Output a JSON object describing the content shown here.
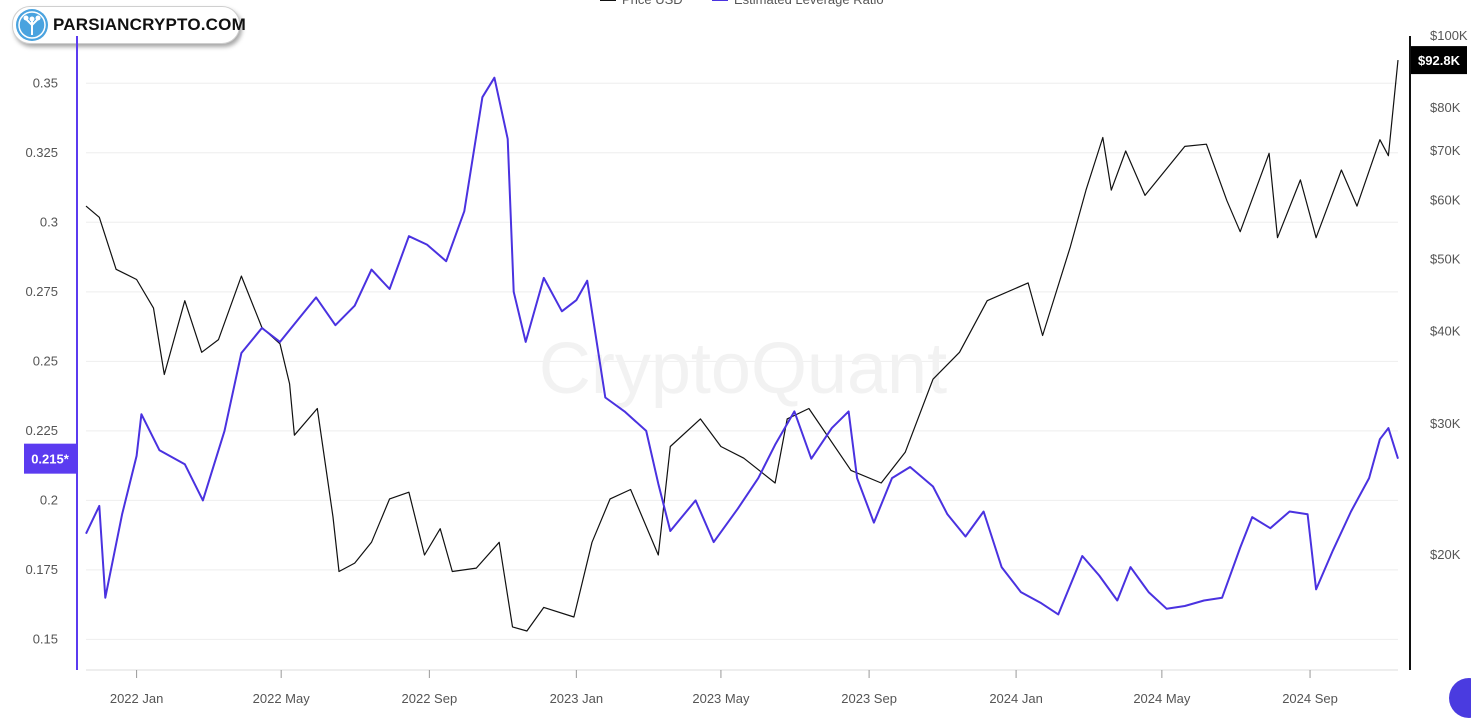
{
  "brand": {
    "logo_text": "PARSIANCRYPTO.COM",
    "logo_icon": "network-tree-icon",
    "watermark": "CryptoQuant"
  },
  "colors": {
    "price": "#111111",
    "leverage": "#4a32e0",
    "grid": "#eeeeee",
    "left_axis": "#5b3bf0",
    "right_axis": "#111111"
  },
  "chart_data": {
    "type": "line",
    "legend": [
      "Price USD",
      "Estimated Leverage Ratio"
    ],
    "legend_position": "top",
    "x_range": [
      "2021-11-20",
      "2024-11-13"
    ],
    "x_ticks": [
      {
        "label": "2022 Jan",
        "date": "2022-01-01"
      },
      {
        "label": "2022 May",
        "date": "2022-05-01"
      },
      {
        "label": "2022 Sep",
        "date": "2022-09-01"
      },
      {
        "label": "2023 Jan",
        "date": "2023-01-01"
      },
      {
        "label": "2023 May",
        "date": "2023-05-01"
      },
      {
        "label": "2023 Sep",
        "date": "2023-09-01"
      },
      {
        "label": "2024 Jan",
        "date": "2024-01-01"
      },
      {
        "label": "2024 May",
        "date": "2024-05-01"
      },
      {
        "label": "2024 Sep",
        "date": "2024-09-01"
      }
    ],
    "left_axis": {
      "ticks": [
        "0.15",
        "0.175",
        "0.2",
        "0.225",
        "0.25",
        "0.275",
        "0.3",
        "0.325",
        "0.35"
      ],
      "range": [
        0.139,
        0.367
      ],
      "current_label": "0.215*",
      "current_value": 0.215
    },
    "right_axis": {
      "scale": "log",
      "ticks": [
        {
          "label": "$20K",
          "value": 20000
        },
        {
          "label": "$30K",
          "value": 30000
        },
        {
          "label": "$40K",
          "value": 40000
        },
        {
          "label": "$50K",
          "value": 50000
        },
        {
          "label": "$60K",
          "value": 60000
        },
        {
          "label": "$70K",
          "value": 70000
        },
        {
          "label": "$80K",
          "value": 80000
        },
        {
          "label": "$100K",
          "value": 100000
        }
      ],
      "range": [
        14000,
        100000
      ],
      "current_label": "$92.8K",
      "current_value": 92800
    },
    "grid": true,
    "series": [
      {
        "name": "Price USD",
        "axis": "right",
        "points": [
          [
            "2021-11-20",
            59000
          ],
          [
            "2021-12-01",
            57000
          ],
          [
            "2021-12-15",
            48500
          ],
          [
            "2022-01-01",
            47000
          ],
          [
            "2022-01-15",
            43000
          ],
          [
            "2022-01-24",
            35000
          ],
          [
            "2022-02-10",
            44000
          ],
          [
            "2022-02-24",
            37500
          ],
          [
            "2022-03-10",
            39000
          ],
          [
            "2022-03-29",
            47500
          ],
          [
            "2022-04-15",
            40500
          ],
          [
            "2022-04-30",
            38500
          ],
          [
            "2022-05-08",
            34000
          ],
          [
            "2022-05-12",
            29000
          ],
          [
            "2022-05-31",
            31500
          ],
          [
            "2022-06-13",
            22500
          ],
          [
            "2022-06-18",
            19000
          ],
          [
            "2022-07-01",
            19500
          ],
          [
            "2022-07-15",
            20800
          ],
          [
            "2022-07-30",
            23800
          ],
          [
            "2022-08-15",
            24300
          ],
          [
            "2022-08-28",
            20000
          ],
          [
            "2022-09-10",
            21700
          ],
          [
            "2022-09-20",
            19000
          ],
          [
            "2022-10-10",
            19200
          ],
          [
            "2022-10-29",
            20800
          ],
          [
            "2022-11-09",
            16000
          ],
          [
            "2022-11-21",
            15800
          ],
          [
            "2022-12-05",
            17000
          ],
          [
            "2022-12-30",
            16500
          ],
          [
            "2023-01-14",
            20800
          ],
          [
            "2023-01-29",
            23800
          ],
          [
            "2023-02-15",
            24500
          ],
          [
            "2023-03-10",
            20000
          ],
          [
            "2023-03-20",
            28000
          ],
          [
            "2023-04-14",
            30500
          ],
          [
            "2023-05-01",
            28000
          ],
          [
            "2023-05-20",
            27000
          ],
          [
            "2023-06-15",
            25000
          ],
          [
            "2023-06-25",
            30500
          ],
          [
            "2023-07-13",
            31500
          ],
          [
            "2023-08-17",
            26000
          ],
          [
            "2023-09-11",
            25000
          ],
          [
            "2023-10-01",
            27500
          ],
          [
            "2023-10-24",
            34500
          ],
          [
            "2023-11-15",
            37500
          ],
          [
            "2023-12-08",
            44000
          ],
          [
            "2024-01-11",
            46500
          ],
          [
            "2024-01-23",
            39500
          ],
          [
            "2024-02-15",
            52000
          ],
          [
            "2024-02-28",
            62000
          ],
          [
            "2024-03-13",
            73000
          ],
          [
            "2024-03-20",
            62000
          ],
          [
            "2024-04-01",
            70000
          ],
          [
            "2024-04-17",
            61000
          ],
          [
            "2024-05-20",
            71000
          ],
          [
            "2024-06-07",
            71500
          ],
          [
            "2024-06-24",
            60000
          ],
          [
            "2024-07-05",
            54500
          ],
          [
            "2024-07-29",
            69500
          ],
          [
            "2024-08-05",
            53500
          ],
          [
            "2024-08-24",
            64000
          ],
          [
            "2024-09-06",
            53500
          ],
          [
            "2024-09-27",
            66000
          ],
          [
            "2024-10-10",
            59000
          ],
          [
            "2024-10-29",
            72500
          ],
          [
            "2024-11-05",
            69000
          ],
          [
            "2024-11-13",
            92800
          ]
        ]
      },
      {
        "name": "Estimated Leverage Ratio",
        "axis": "left",
        "points": [
          [
            "2021-11-20",
            0.188
          ],
          [
            "2021-12-01",
            0.198
          ],
          [
            "2021-12-06",
            0.165
          ],
          [
            "2021-12-20",
            0.195
          ],
          [
            "2022-01-01",
            0.216
          ],
          [
            "2022-01-05",
            0.231
          ],
          [
            "2022-01-20",
            0.218
          ],
          [
            "2022-02-10",
            0.213
          ],
          [
            "2022-02-25",
            0.2
          ],
          [
            "2022-03-15",
            0.225
          ],
          [
            "2022-03-29",
            0.253
          ],
          [
            "2022-04-15",
            0.262
          ],
          [
            "2022-04-30",
            0.257
          ],
          [
            "2022-05-15",
            0.265
          ],
          [
            "2022-05-30",
            0.273
          ],
          [
            "2022-06-15",
            0.263
          ],
          [
            "2022-07-01",
            0.27
          ],
          [
            "2022-07-15",
            0.283
          ],
          [
            "2022-07-30",
            0.276
          ],
          [
            "2022-08-15",
            0.295
          ],
          [
            "2022-08-30",
            0.292
          ],
          [
            "2022-09-15",
            0.286
          ],
          [
            "2022-09-30",
            0.304
          ],
          [
            "2022-10-15",
            0.345
          ],
          [
            "2022-10-25",
            0.352
          ],
          [
            "2022-11-05",
            0.33
          ],
          [
            "2022-11-10",
            0.275
          ],
          [
            "2022-11-20",
            0.257
          ],
          [
            "2022-12-05",
            0.28
          ],
          [
            "2022-12-20",
            0.268
          ],
          [
            "2023-01-01",
            0.272
          ],
          [
            "2023-01-10",
            0.279
          ],
          [
            "2023-01-25",
            0.237
          ],
          [
            "2023-02-10",
            0.232
          ],
          [
            "2023-02-28",
            0.225
          ],
          [
            "2023-03-10",
            0.206
          ],
          [
            "2023-03-20",
            0.189
          ],
          [
            "2023-04-10",
            0.2
          ],
          [
            "2023-04-25",
            0.185
          ],
          [
            "2023-05-15",
            0.197
          ],
          [
            "2023-06-01",
            0.208
          ],
          [
            "2023-06-15",
            0.22
          ],
          [
            "2023-07-01",
            0.232
          ],
          [
            "2023-07-15",
            0.215
          ],
          [
            "2023-08-01",
            0.226
          ],
          [
            "2023-08-15",
            0.232
          ],
          [
            "2023-08-22",
            0.208
          ],
          [
            "2023-09-05",
            0.192
          ],
          [
            "2023-09-20",
            0.208
          ],
          [
            "2023-10-05",
            0.212
          ],
          [
            "2023-10-24",
            0.205
          ],
          [
            "2023-11-05",
            0.195
          ],
          [
            "2023-11-20",
            0.187
          ],
          [
            "2023-12-05",
            0.196
          ],
          [
            "2023-12-20",
            0.176
          ],
          [
            "2024-01-05",
            0.167
          ],
          [
            "2024-01-22",
            0.163
          ],
          [
            "2024-02-05",
            0.159
          ],
          [
            "2024-02-25",
            0.18
          ],
          [
            "2024-03-10",
            0.173
          ],
          [
            "2024-03-25",
            0.164
          ],
          [
            "2024-04-05",
            0.176
          ],
          [
            "2024-04-20",
            0.167
          ],
          [
            "2024-05-05",
            0.161
          ],
          [
            "2024-05-20",
            0.162
          ],
          [
            "2024-06-05",
            0.164
          ],
          [
            "2024-06-20",
            0.165
          ],
          [
            "2024-07-05",
            0.183
          ],
          [
            "2024-07-15",
            0.194
          ],
          [
            "2024-07-30",
            0.19
          ],
          [
            "2024-08-15",
            0.196
          ],
          [
            "2024-08-30",
            0.195
          ],
          [
            "2024-09-06",
            0.168
          ],
          [
            "2024-09-20",
            0.182
          ],
          [
            "2024-10-05",
            0.196
          ],
          [
            "2024-10-20",
            0.208
          ],
          [
            "2024-10-29",
            0.222
          ],
          [
            "2024-11-05",
            0.226
          ],
          [
            "2024-11-13",
            0.215
          ]
        ]
      }
    ]
  }
}
